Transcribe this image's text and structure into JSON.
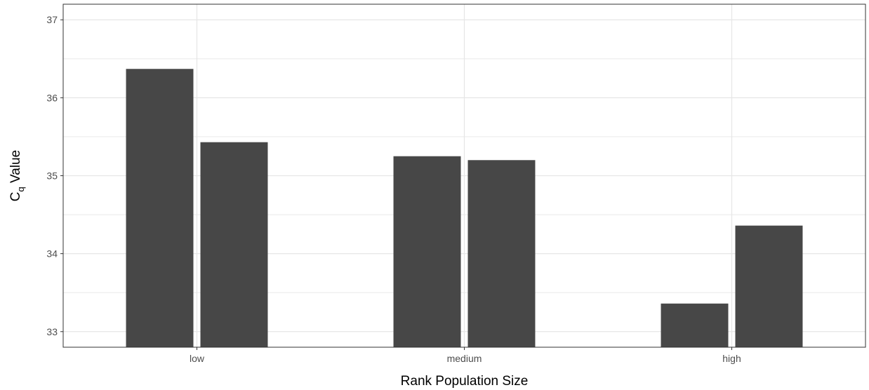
{
  "chart_data": {
    "type": "bar",
    "title": "",
    "xlabel": "Rank Population Size",
    "ylabel": {
      "main": "C",
      "subscript": "q",
      "suffix": " Value"
    },
    "categories": [
      "low",
      "medium",
      "high"
    ],
    "series": [
      {
        "values": [
          36.37,
          35.25,
          33.36
        ]
      },
      {
        "values": [
          35.43,
          35.2,
          34.36
        ]
      }
    ],
    "ylim": [
      32.8,
      37.2
    ],
    "yticks": [
      33,
      34,
      35,
      36,
      37
    ],
    "grid": true,
    "legend": "none",
    "colors": {
      "bar": "#474747",
      "grid": "#e6e6e6",
      "panel_border": "#333333",
      "axis_text": "#4d4d4d"
    }
  }
}
